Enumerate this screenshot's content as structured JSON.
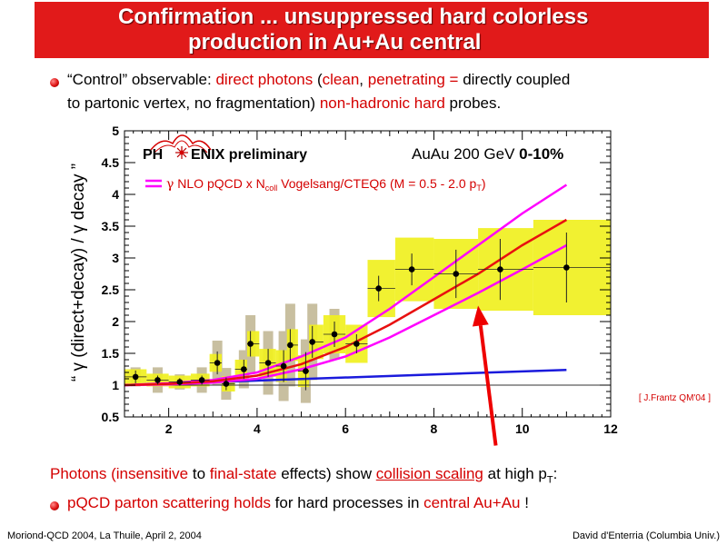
{
  "title": {
    "line1": "Confirmation ... unsuppressed hard colorless",
    "line2": "production in Au+Au central"
  },
  "bullet1": {
    "l1_a": "“Control” observable: ",
    "l1_b": "direct photons",
    "l1_c": " (",
    "l1_d": "clean",
    "l1_e": ", ",
    "l1_f": "penetrating =",
    "l1_g": " directly coupled",
    "l2_a": "to partonic vertex, no fragmentation) ",
    "l2_b": "non-hadronic hard",
    "l2_c": " probes."
  },
  "conclusion": {
    "a": "Photons (",
    "b": "insensitive",
    "c": " to ",
    "d": "final-state",
    "e": " effects) show ",
    "f": "collision scaling",
    "g": " at high p",
    "h": "T",
    "i": ":"
  },
  "bullet2": {
    "a": "pQCD parton scattering holds",
    "b": " for hard processes in ",
    "c": "central Au+Au",
    "d": " !"
  },
  "footer": {
    "left": "Moriond-QCD 2004, La Thuile, April 2, 2004",
    "right": "David d'Enterria (Columbia Univ.)"
  },
  "colors": {
    "title_bg": "#e11a1a",
    "accent_red": "#d40000",
    "sys_band": "#f0f020",
    "gray_band": "#c8bfa0",
    "nlo_magenta": "#ff00ff",
    "nlo_central": "#e81010",
    "baseline_blue": "#1a1adc"
  },
  "chart_data": {
    "type": "scatter",
    "ylabel": "“ γ (direct+decay) / γ decay ”",
    "xlim": [
      1,
      12
    ],
    "ylim": [
      0.5,
      5
    ],
    "x_ticks": [
      2,
      4,
      6,
      8,
      10,
      12
    ],
    "y_ticks": [
      0.5,
      1,
      1.5,
      2,
      2.5,
      3,
      3.5,
      4,
      4.5,
      5
    ],
    "x_tick_labels": [
      "2",
      "4",
      "6",
      "8",
      "10",
      "12"
    ],
    "y_tick_labels": [
      "0.5",
      "1",
      "1.5",
      "2",
      "2.5",
      "3",
      "3.5",
      "4",
      "4.5",
      "5"
    ],
    "brand_left": "PH",
    "brand_right": "ENIX preliminary",
    "system_label": "AuAu 200 GeV ",
    "centrality": "0-10%",
    "legend": {
      "gamma": "γ",
      "a": " NLO pQCD  x N",
      "coll": "coll",
      "b": " Vogelsang/CTEQ6 (M = 0.5 - 2.0 p",
      "t": "T",
      "c": ")"
    },
    "reference_note": "[ J.Frantz QM'04 ]",
    "series": [
      {
        "name": "data",
        "points": [
          {
            "x": 1.25,
            "y": 1.13,
            "err": 0.1,
            "sys": 0.12,
            "graysys": 0.15
          },
          {
            "x": 1.75,
            "y": 1.08,
            "err": 0.07,
            "sys": 0.1,
            "graysys": 0.2
          },
          {
            "x": 2.25,
            "y": 1.05,
            "err": 0.06,
            "sys": 0.1,
            "graysys": 0.12
          },
          {
            "x": 2.75,
            "y": 1.08,
            "err": 0.07,
            "sys": 0.1,
            "graysys": 0.2
          },
          {
            "x": 3.1,
            "y": 1.35,
            "err": 0.18,
            "sys": 0.14,
            "graysys": 0.35
          },
          {
            "x": 3.3,
            "y": 1.02,
            "err": 0.1,
            "sys": 0.12,
            "graysys": 0.25
          },
          {
            "x": 3.7,
            "y": 1.25,
            "err": 0.15,
            "sys": 0.15,
            "graysys": 0.3
          },
          {
            "x": 3.85,
            "y": 1.65,
            "err": 0.2,
            "sys": 0.2,
            "graysys": 0.45
          },
          {
            "x": 4.25,
            "y": 1.35,
            "err": 0.22,
            "sys": 0.22,
            "graysys": 0.5
          },
          {
            "x": 4.6,
            "y": 1.3,
            "err": 0.25,
            "sys": 0.25,
            "graysys": 0.55
          },
          {
            "x": 4.75,
            "y": 1.63,
            "err": 0.25,
            "sys": 0.25,
            "graysys": 0.65
          },
          {
            "x": 5.1,
            "y": 1.22,
            "err": 0.3,
            "sys": 0.25,
            "graysys": 0.5
          },
          {
            "x": 5.25,
            "y": 1.68,
            "err": 0.25,
            "sys": 0.27,
            "graysys": 0.6
          },
          {
            "x": 5.75,
            "y": 1.8,
            "err": 0.2,
            "sys": 0.3,
            "graysys": 0.4
          },
          {
            "x": 6.25,
            "y": 1.65,
            "err": 0.15,
            "sys": 0.3,
            "graysys": 0.0
          },
          {
            "x": 6.75,
            "y": 2.52,
            "err": 0.2,
            "sys": 0.45,
            "graysys": 0.0
          },
          {
            "x": 7.5,
            "y": 2.82,
            "err": 0.25,
            "sys": 0.5,
            "graysys": 0.0
          },
          {
            "x": 8.5,
            "y": 2.75,
            "err": 0.38,
            "sys": 0.55,
            "graysys": 0.0
          },
          {
            "x": 9.5,
            "y": 2.82,
            "err": 0.48,
            "sys": 0.65,
            "graysys": 0.0
          },
          {
            "x": 11.0,
            "y": 2.85,
            "err": 0.55,
            "sys": 0.75,
            "graysys": 0.0
          }
        ]
      },
      {
        "name": "NLO pQCD upper",
        "x": [
          1.0,
          2.0,
          3.0,
          4.0,
          5.0,
          6.0,
          7.0,
          8.0,
          9.0,
          10.0,
          11.0
        ],
        "y": [
          1.0,
          1.03,
          1.08,
          1.2,
          1.45,
          1.75,
          2.2,
          2.7,
          3.2,
          3.7,
          4.15
        ]
      },
      {
        "name": "NLO pQCD central",
        "x": [
          1.0,
          2.0,
          3.0,
          4.0,
          5.0,
          6.0,
          7.0,
          8.0,
          9.0,
          10.0,
          11.0
        ],
        "y": [
          1.0,
          1.02,
          1.06,
          1.15,
          1.33,
          1.6,
          1.95,
          2.35,
          2.75,
          3.2,
          3.6
        ]
      },
      {
        "name": "NLO pQCD lower",
        "x": [
          1.0,
          2.0,
          3.0,
          4.0,
          5.0,
          6.0,
          7.0,
          8.0,
          9.0,
          10.0,
          11.0
        ],
        "y": [
          1.0,
          1.01,
          1.04,
          1.1,
          1.25,
          1.45,
          1.75,
          2.1,
          2.45,
          2.82,
          3.2
        ]
      },
      {
        "name": "baseline",
        "x": [
          1.0,
          11.0
        ],
        "y": [
          1.0,
          1.24
        ]
      }
    ],
    "reference_line_y": 1.0,
    "arrow": {
      "from": [
        9.4,
        0.05
      ],
      "to": [
        9.0,
        2.25
      ]
    }
  }
}
